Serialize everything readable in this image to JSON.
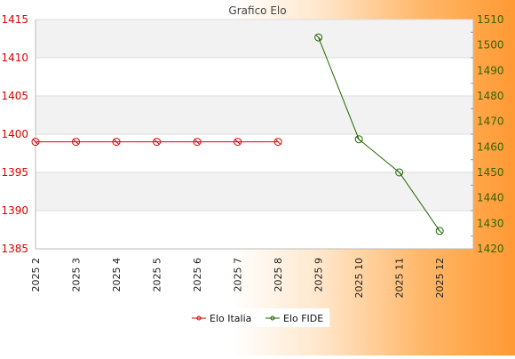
{
  "chart_data": {
    "type": "line",
    "title": "Grafico Elo",
    "categories": [
      "2025 2",
      "2025 3",
      "2025 4",
      "2025 5",
      "2025 6",
      "2025 7",
      "2025 8",
      "2025 9",
      "2025 10",
      "2025 11",
      "2025 12"
    ],
    "left_axis": {
      "range": [
        1385,
        1415
      ],
      "ticks": [
        "1385",
        "1390",
        "1395",
        "1400",
        "1405",
        "1410",
        "1415"
      ],
      "color": "#dd0000"
    },
    "right_axis": {
      "range": [
        1420,
        1510
      ],
      "ticks": [
        "1420",
        "1430",
        "1440",
        "1450",
        "1460",
        "1470",
        "1480",
        "1490",
        "1500",
        "1510"
      ],
      "color": "#336600"
    },
    "series": [
      {
        "name": "Elo Italia",
        "axis": "left",
        "color": "#dd0000",
        "values": [
          1399,
          1399,
          1399,
          1399,
          1399,
          1399,
          1399,
          null,
          null,
          null,
          null
        ]
      },
      {
        "name": "Elo FIDE",
        "axis": "right",
        "color": "#226600",
        "values": [
          null,
          null,
          null,
          null,
          null,
          null,
          null,
          1503,
          1463,
          1450,
          1427
        ]
      }
    ],
    "grid": true,
    "legend": "bottom-center"
  }
}
